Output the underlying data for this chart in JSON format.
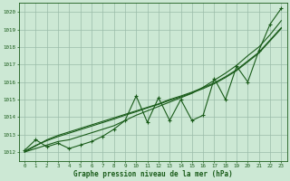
{
  "title": "Graphe pression niveau de la mer (hPa)",
  "x_hours": [
    0,
    1,
    2,
    3,
    4,
    5,
    6,
    7,
    8,
    9,
    10,
    11,
    12,
    13,
    14,
    15,
    16,
    17,
    18,
    19,
    20,
    21,
    22,
    23
  ],
  "pressure_jagged": [
    1012.1,
    1012.7,
    1012.3,
    1012.5,
    1012.2,
    1012.4,
    1012.6,
    1012.9,
    1013.3,
    1013.8,
    1015.2,
    1013.7,
    1015.1,
    1013.8,
    1015.0,
    1013.8,
    1014.1,
    1016.2,
    1015.0,
    1016.9,
    1016.0,
    1017.8,
    1019.3,
    1020.2
  ],
  "pressure_smooth": [
    1012.0,
    1012.2,
    1012.4,
    1012.6,
    1012.7,
    1012.9,
    1013.1,
    1013.3,
    1013.5,
    1013.8,
    1014.1,
    1014.35,
    1014.6,
    1014.85,
    1015.1,
    1015.35,
    1015.7,
    1016.1,
    1016.5,
    1016.95,
    1017.5,
    1018.0,
    1018.7,
    1019.5
  ],
  "pressure_linear1": [
    1012.0,
    1012.35,
    1012.7,
    1012.95,
    1013.15,
    1013.35,
    1013.55,
    1013.75,
    1013.95,
    1014.15,
    1014.35,
    1014.55,
    1014.75,
    1015.0,
    1015.2,
    1015.42,
    1015.68,
    1015.95,
    1016.3,
    1016.7,
    1017.2,
    1017.7,
    1018.4,
    1019.1
  ],
  "pressure_linear2": [
    1012.05,
    1012.38,
    1012.65,
    1012.88,
    1013.08,
    1013.28,
    1013.48,
    1013.68,
    1013.88,
    1014.1,
    1014.3,
    1014.52,
    1014.72,
    1014.95,
    1015.15,
    1015.38,
    1015.62,
    1015.9,
    1016.25,
    1016.65,
    1017.15,
    1017.65,
    1018.35,
    1019.05
  ],
  "line_color": "#1a5c1a",
  "bg_color": "#cce8d4",
  "grid_color": "#9abca9",
  "ylim_min": 1011.5,
  "ylim_max": 1020.5,
  "xlim_min": -0.5,
  "xlim_max": 23.5,
  "yticks": [
    1012,
    1013,
    1014,
    1015,
    1016,
    1017,
    1018,
    1019,
    1020
  ]
}
